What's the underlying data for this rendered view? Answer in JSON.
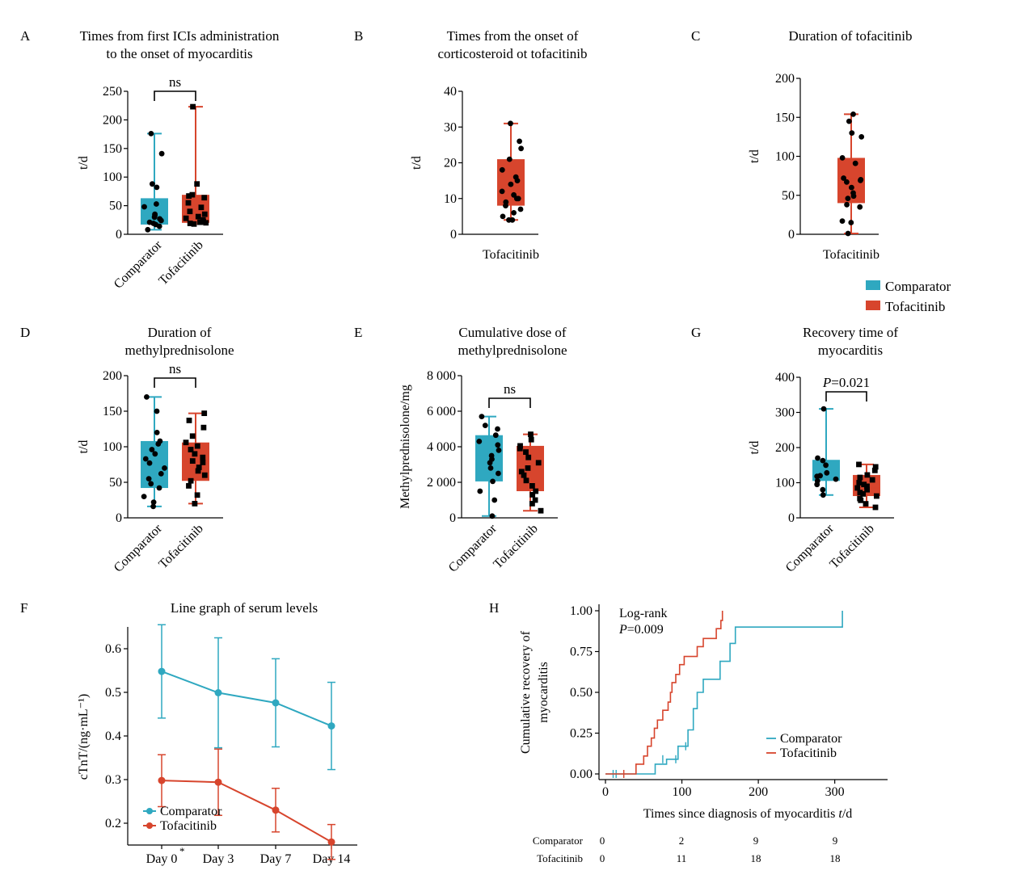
{
  "colors": {
    "comparator": "#2fa8c0",
    "tofacitinib": "#d7452d",
    "point": "#000000"
  },
  "legend_panel": {
    "comparator": "Comparator",
    "tofacitinib": "Tofacitinib"
  },
  "chart_data": [
    {
      "panel": "A",
      "type": "box",
      "title_lines": [
        "Times from first ICIs administration",
        "to the onset of myocarditis"
      ],
      "ylabel": "t/d",
      "ylim": [
        0,
        250
      ],
      "yticks": [
        0,
        50,
        100,
        150,
        200,
        250
      ],
      "categories": [
        "Comparator",
        "Tofacitinib"
      ],
      "annotation": "ns",
      "boxes": [
        {
          "name": "Comparator",
          "min": 8,
          "q1": 17,
          "median": 32,
          "q3": 63,
          "max": 176,
          "points": [
            8,
            14,
            17,
            19,
            21,
            24,
            27,
            30,
            33,
            35,
            48,
            53,
            82,
            88,
            141,
            176
          ]
        },
        {
          "name": "Tofacitinib",
          "min": 18,
          "q1": 20,
          "median": 32,
          "q3": 69,
          "max": 223,
          "points": [
            18,
            19,
            20,
            21,
            22,
            25,
            28,
            31,
            35,
            40,
            47,
            55,
            64,
            67,
            69,
            88,
            223
          ]
        }
      ]
    },
    {
      "panel": "B",
      "type": "box",
      "title_lines": [
        "Times from the onset of",
        "corticosteroid ot tofacitinib"
      ],
      "ylabel": "t/d",
      "ylim": [
        0,
        40
      ],
      "yticks": [
        0,
        10,
        20,
        30,
        40
      ],
      "categories": [
        "Tofacitinib"
      ],
      "boxes": [
        {
          "name": "Tofacitinib",
          "min": 4,
          "q1": 8,
          "median": 10,
          "q3": 21,
          "max": 31,
          "points": [
            4,
            4,
            5,
            6,
            7,
            8,
            9,
            10,
            10,
            11,
            12,
            14,
            15,
            16,
            18,
            21,
            24,
            26,
            31
          ]
        }
      ]
    },
    {
      "panel": "C",
      "type": "box",
      "title_lines": [
        "Duration of tofacitinib"
      ],
      "ylabel": "t/d",
      "ylim": [
        0,
        200
      ],
      "yticks": [
        0,
        50,
        100,
        150,
        200
      ],
      "categories": [
        "Tofacitinib"
      ],
      "boxes": [
        {
          "name": "Tofacitinib",
          "min": 1,
          "q1": 40,
          "median": 70,
          "q3": 98,
          "max": 154,
          "points": [
            1,
            15,
            17,
            35,
            38,
            46,
            49,
            53,
            60,
            67,
            69,
            70,
            72,
            91,
            98,
            125,
            130,
            145,
            154
          ]
        }
      ]
    },
    {
      "panel": "D",
      "type": "box",
      "title_lines": [
        "Duration of",
        "methylprednisolone"
      ],
      "ylabel": "t/d",
      "ylim": [
        0,
        200
      ],
      "yticks": [
        0,
        50,
        100,
        150,
        200
      ],
      "categories": [
        "Comparator",
        "Tofacitinib"
      ],
      "annotation": "ns",
      "boxes": [
        {
          "name": "Comparator",
          "min": 16,
          "q1": 42,
          "median": 77,
          "q3": 108,
          "max": 170,
          "points": [
            16,
            22,
            30,
            42,
            48,
            55,
            62,
            70,
            77,
            83,
            90,
            96,
            104,
            108,
            120,
            150,
            170
          ]
        },
        {
          "name": "Tofacitinib",
          "min": 20,
          "q1": 52,
          "median": 80,
          "q3": 106,
          "max": 147,
          "points": [
            20,
            32,
            45,
            52,
            60,
            66,
            71,
            78,
            80,
            85,
            90,
            96,
            101,
            106,
            115,
            127,
            137,
            147
          ]
        }
      ]
    },
    {
      "panel": "E",
      "type": "box",
      "title_lines": [
        "Cumulative dose of",
        "methylprednisolone"
      ],
      "ylabel": "Methylprednisolone/mg",
      "ylim": [
        0,
        8000
      ],
      "yticks": [
        0,
        2000,
        4000,
        6000,
        8000
      ],
      "ytick_labels": [
        "0",
        "2 000",
        "4 000",
        "6 000",
        "8 000"
      ],
      "categories": [
        "Comparator",
        "Tofacitinib"
      ],
      "annotation": "ns",
      "boxes": [
        {
          "name": "Comparator",
          "min": 100,
          "q1": 2050,
          "median": 3500,
          "q3": 4650,
          "max": 5700,
          "points": [
            100,
            1000,
            1500,
            2050,
            2500,
            2800,
            3100,
            3300,
            3500,
            3800,
            4100,
            4300,
            4650,
            5000,
            5200,
            5700
          ]
        },
        {
          "name": "Tofacitinib",
          "min": 400,
          "q1": 1500,
          "median": 2600,
          "q3": 4050,
          "max": 4700,
          "points": [
            400,
            800,
            1000,
            1300,
            1500,
            1800,
            2100,
            2400,
            2600,
            2800,
            3100,
            3400,
            3700,
            3900,
            4050,
            4400,
            4700
          ]
        }
      ]
    },
    {
      "panel": "G",
      "type": "box",
      "title_lines": [
        "Recovery time of",
        "myocarditis"
      ],
      "ylabel": "t/d",
      "ylim": [
        0,
        400
      ],
      "yticks": [
        0,
        100,
        200,
        300,
        400
      ],
      "categories": [
        "Comparator",
        "Tofacitinib"
      ],
      "annotation": "P=0.021",
      "boxes": [
        {
          "name": "Comparator",
          "min": 65,
          "q1": 105,
          "median": 120,
          "q3": 165,
          "max": 310,
          "points": [
            65,
            80,
            95,
            105,
            110,
            118,
            120,
            128,
            150,
            163,
            170,
            310
          ]
        },
        {
          "name": "Tofacitinib",
          "min": 30,
          "q1": 62,
          "median": 85,
          "q3": 122,
          "max": 152,
          "points": [
            30,
            40,
            50,
            55,
            62,
            68,
            72,
            80,
            85,
            90,
            95,
            100,
            108,
            115,
            122,
            135,
            145,
            152
          ]
        }
      ]
    },
    {
      "panel": "F",
      "type": "line",
      "title": "Line graph of serum levels",
      "ylabel": "cTnT/(ng·mL⁻¹)",
      "ylim": [
        0.15,
        0.65
      ],
      "yticks": [
        0.2,
        0.3,
        0.4,
        0.5,
        0.6
      ],
      "categories": [
        "Day 0",
        "Day 3",
        "Day 7",
        "Day 14"
      ],
      "day0_marker": "*",
      "legend_position": "bottom-left",
      "series": [
        {
          "name": "Comparator",
          "values": [
            0.548,
            0.499,
            0.476,
            0.423
          ],
          "err_low": [
            0.441,
            0.373,
            0.375,
            0.323
          ],
          "err_high": [
            0.655,
            0.625,
            0.577,
            0.523
          ]
        },
        {
          "name": "Tofacitinib",
          "values": [
            0.298,
            0.294,
            0.23,
            0.157
          ],
          "err_low": [
            0.238,
            0.218,
            0.18,
            0.117
          ],
          "err_high": [
            0.357,
            0.37,
            0.28,
            0.197
          ]
        }
      ]
    },
    {
      "panel": "H",
      "type": "line",
      "subtype": "kaplan-meier",
      "ylabel_lines": [
        "Cumulative recovery of",
        "myocarditis"
      ],
      "xlabel": "Times since diagnosis of myocarditis t/d",
      "xlim": [
        -5,
        370
      ],
      "xticks": [
        0,
        100,
        200,
        300
      ],
      "ylim": [
        0,
        1
      ],
      "yticks": [
        0.0,
        0.25,
        0.5,
        0.75,
        1.0
      ],
      "ytick_labels": [
        "0.00",
        "0.25",
        "0.50",
        "0.75",
        "1.00"
      ],
      "annotation_lines": [
        "Log-rank",
        "P=0.009"
      ],
      "legend_position": "bottom-right",
      "series": [
        {
          "name": "Comparator",
          "steps": [
            [
              0,
              0
            ],
            [
              65,
              0.06
            ],
            [
              80,
              0.09
            ],
            [
              95,
              0.17
            ],
            [
              108,
              0.27
            ],
            [
              115,
              0.4
            ],
            [
              120,
              0.5
            ],
            [
              128,
              0.58
            ],
            [
              150,
              0.69
            ],
            [
              163,
              0.8
            ],
            [
              170,
              0.9
            ],
            [
              310,
              1.0
            ]
          ],
          "censors": [
            [
              10,
              0
            ],
            [
              14,
              0
            ],
            [
              75,
              0.09
            ],
            [
              92,
              0.09
            ],
            [
              105,
              0.17
            ]
          ]
        },
        {
          "name": "Tofacitinib",
          "steps": [
            [
              0,
              0
            ],
            [
              40,
              0.06
            ],
            [
              50,
              0.11
            ],
            [
              55,
              0.17
            ],
            [
              60,
              0.22
            ],
            [
              64,
              0.28
            ],
            [
              68,
              0.33
            ],
            [
              75,
              0.39
            ],
            [
              82,
              0.44
            ],
            [
              85,
              0.5
            ],
            [
              87,
              0.56
            ],
            [
              92,
              0.61
            ],
            [
              97,
              0.67
            ],
            [
              103,
              0.72
            ],
            [
              120,
              0.78
            ],
            [
              128,
              0.83
            ],
            [
              145,
              0.89
            ],
            [
              151,
              0.94
            ],
            [
              153,
              1.0
            ]
          ],
          "censors": [
            [
              24,
              0
            ]
          ]
        }
      ],
      "risk_table": {
        "rows": [
          {
            "label": "Comparator",
            "values": [
              "0",
              "2",
              "9",
              "9"
            ]
          },
          {
            "label": "Tofacitinib",
            "values": [
              "0",
              "11",
              "18",
              "18"
            ]
          }
        ]
      }
    }
  ]
}
